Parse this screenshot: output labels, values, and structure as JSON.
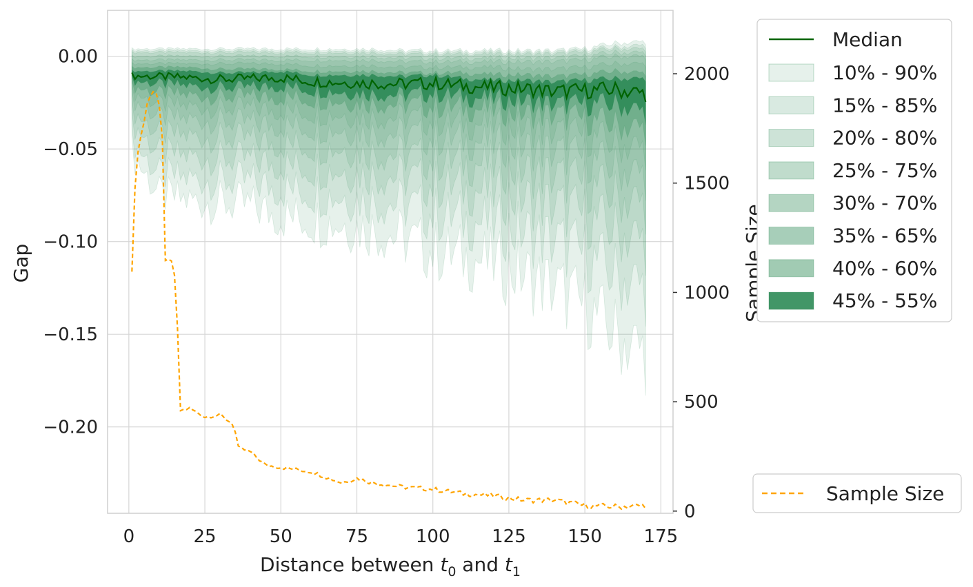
{
  "chart_data": {
    "type": "area",
    "xlabel": "Distance between t0 and t1",
    "xlabel_parts": [
      "Distance between ",
      "t",
      "0",
      " and ",
      "t",
      "1"
    ],
    "ylabel_left": "Gap",
    "ylabel_right": "Sample Size",
    "xlim": [
      -7,
      179
    ],
    "ylim_left": [
      -0.2466,
      0.0248
    ],
    "ylim_right": [
      -10,
      2290
    ],
    "x_ticks": [
      0,
      25,
      50,
      75,
      100,
      125,
      150,
      175
    ],
    "y_ticks_left": [
      0.0,
      -0.05,
      -0.1,
      -0.15,
      -0.2
    ],
    "y_tick_labels_left": [
      "0.00",
      "−0.05",
      "−0.10",
      "−0.15",
      "−0.20"
    ],
    "y_ticks_right": [
      0,
      500,
      1000,
      1500,
      2000
    ],
    "y_tick_labels_right": [
      "0",
      "500",
      "1000",
      "1500",
      "2000"
    ],
    "grid": true,
    "legend_main_position": "upper-right-outside",
    "legend_sample_position": "lower-right-outside",
    "median_color": "#006400",
    "band_color": "#2e8b57",
    "sample_color": "#ffa500",
    "x": [
      1,
      10,
      20,
      30,
      40,
      50,
      60,
      70,
      80,
      90,
      100,
      110,
      120,
      130,
      140,
      150,
      160,
      170
    ],
    "median": [
      -0.0105,
      -0.011,
      -0.0115,
      -0.0125,
      -0.012,
      -0.0115,
      -0.0135,
      -0.014,
      -0.0145,
      -0.015,
      -0.0145,
      -0.016,
      -0.017,
      -0.0175,
      -0.019,
      -0.0185,
      -0.018,
      -0.02
    ],
    "bands": [
      {
        "name": "10% - 90%",
        "opacity": 0.12,
        "lower": [
          -0.052,
          -0.075,
          -0.078,
          -0.079,
          -0.081,
          -0.086,
          -0.088,
          -0.09,
          -0.093,
          -0.098,
          -0.105,
          -0.108,
          -0.112,
          -0.118,
          -0.125,
          -0.135,
          -0.15,
          -0.16
        ],
        "upper": [
          0.004,
          0.004,
          0.004,
          0.004,
          0.004,
          0.004,
          0.004,
          0.004,
          0.004,
          0.003,
          0.003,
          0.003,
          0.003,
          0.003,
          0.003,
          0.004,
          0.007,
          0.008
        ]
      },
      {
        "name": "15% - 85%",
        "opacity": 0.12,
        "lower": [
          -0.045,
          -0.064,
          -0.066,
          -0.067,
          -0.068,
          -0.071,
          -0.073,
          -0.075,
          -0.077,
          -0.08,
          -0.085,
          -0.088,
          -0.091,
          -0.095,
          -0.1,
          -0.107,
          -0.118,
          -0.125
        ],
        "upper": [
          0.003,
          0.003,
          0.003,
          0.003,
          0.003,
          0.003,
          0.003,
          0.003,
          0.003,
          0.002,
          0.002,
          0.002,
          0.002,
          0.002,
          0.002,
          0.003,
          0.005,
          0.006
        ]
      },
      {
        "name": "20% - 80%",
        "opacity": 0.12,
        "lower": [
          -0.036,
          -0.052,
          -0.054,
          -0.055,
          -0.056,
          -0.058,
          -0.06,
          -0.061,
          -0.063,
          -0.065,
          -0.069,
          -0.071,
          -0.074,
          -0.077,
          -0.081,
          -0.086,
          -0.094,
          -0.1
        ],
        "upper": [
          0.002,
          0.002,
          0.002,
          0.002,
          0.002,
          0.002,
          0.002,
          0.002,
          0.002,
          0.001,
          0.001,
          0.001,
          0.001,
          0.001,
          0.001,
          0.002,
          0.004,
          0.004
        ]
      },
      {
        "name": "25% - 75%",
        "opacity": 0.12,
        "lower": [
          -0.029,
          -0.042,
          -0.043,
          -0.044,
          -0.045,
          -0.047,
          -0.048,
          -0.049,
          -0.051,
          -0.053,
          -0.056,
          -0.057,
          -0.059,
          -0.062,
          -0.065,
          -0.069,
          -0.075,
          -0.08
        ],
        "upper": [
          0.0,
          0.0,
          0.0,
          0.0,
          0.0,
          0.0,
          0.0,
          0.0,
          0.0,
          -0.001,
          -0.001,
          -0.001,
          -0.001,
          -0.001,
          -0.001,
          0.0,
          0.002,
          0.002
        ]
      },
      {
        "name": "30% - 70%",
        "opacity": 0.12,
        "lower": [
          -0.023,
          -0.033,
          -0.034,
          -0.035,
          -0.036,
          -0.037,
          -0.038,
          -0.039,
          -0.04,
          -0.042,
          -0.044,
          -0.045,
          -0.047,
          -0.049,
          -0.052,
          -0.055,
          -0.06,
          -0.064
        ],
        "upper": [
          -0.002,
          -0.002,
          -0.002,
          -0.002,
          -0.002,
          -0.002,
          -0.002,
          -0.002,
          -0.002,
          -0.003,
          -0.003,
          -0.003,
          -0.003,
          -0.003,
          -0.003,
          -0.002,
          0.0,
          0.0
        ]
      },
      {
        "name": "35% - 65%",
        "opacity": 0.12,
        "lower": [
          -0.019,
          -0.026,
          -0.027,
          -0.028,
          -0.028,
          -0.029,
          -0.03,
          -0.031,
          -0.032,
          -0.033,
          -0.035,
          -0.036,
          -0.037,
          -0.039,
          -0.041,
          -0.043,
          -0.047,
          -0.05
        ],
        "upper": [
          -0.004,
          -0.004,
          -0.004,
          -0.004,
          -0.004,
          -0.004,
          -0.005,
          -0.005,
          -0.005,
          -0.006,
          -0.006,
          -0.006,
          -0.006,
          -0.007,
          -0.007,
          -0.006,
          -0.004,
          -0.004
        ]
      },
      {
        "name": "40% - 60%",
        "opacity": 0.3,
        "lower": [
          -0.016,
          -0.02,
          -0.021,
          -0.022,
          -0.022,
          -0.022,
          -0.023,
          -0.024,
          -0.025,
          -0.026,
          -0.027,
          -0.028,
          -0.029,
          -0.031,
          -0.032,
          -0.034,
          -0.037,
          -0.039
        ],
        "upper": [
          -0.006,
          -0.006,
          -0.006,
          -0.007,
          -0.007,
          -0.007,
          -0.008,
          -0.008,
          -0.008,
          -0.009,
          -0.009,
          -0.009,
          -0.01,
          -0.01,
          -0.011,
          -0.01,
          -0.008,
          -0.009
        ]
      },
      {
        "name": "45% - 55%",
        "opacity": 0.9,
        "lower": [
          -0.013,
          -0.015,
          -0.016,
          -0.017,
          -0.017,
          -0.016,
          -0.018,
          -0.019,
          -0.02,
          -0.021,
          -0.02,
          -0.022,
          -0.023,
          -0.024,
          -0.026,
          -0.026,
          -0.026,
          -0.03
        ],
        "upper": [
          -0.008,
          -0.008,
          -0.008,
          -0.009,
          -0.009,
          -0.008,
          -0.01,
          -0.01,
          -0.01,
          -0.011,
          -0.01,
          -0.012,
          -0.013,
          -0.013,
          -0.014,
          -0.013,
          -0.012,
          -0.012
        ]
      }
    ],
    "legend_median": "Median",
    "sample_size": {
      "name": "Sample Size",
      "x": [
        1,
        2,
        3,
        4,
        5,
        6,
        7,
        8,
        9,
        10,
        11,
        12,
        14,
        15,
        16,
        17,
        20,
        25,
        30,
        34,
        35,
        36,
        40,
        45,
        50,
        60,
        70,
        75,
        80,
        90,
        100,
        110,
        120,
        130,
        140,
        150,
        160,
        170
      ],
      "y": [
        1090,
        1480,
        1640,
        1720,
        1780,
        1860,
        1900,
        1920,
        1910,
        1850,
        1700,
        1150,
        1140,
        1080,
        830,
        460,
        470,
        430,
        440,
        400,
        360,
        290,
        270,
        210,
        200,
        180,
        130,
        150,
        130,
        110,
        100,
        80,
        70,
        50,
        50,
        25,
        20,
        25
      ]
    }
  }
}
